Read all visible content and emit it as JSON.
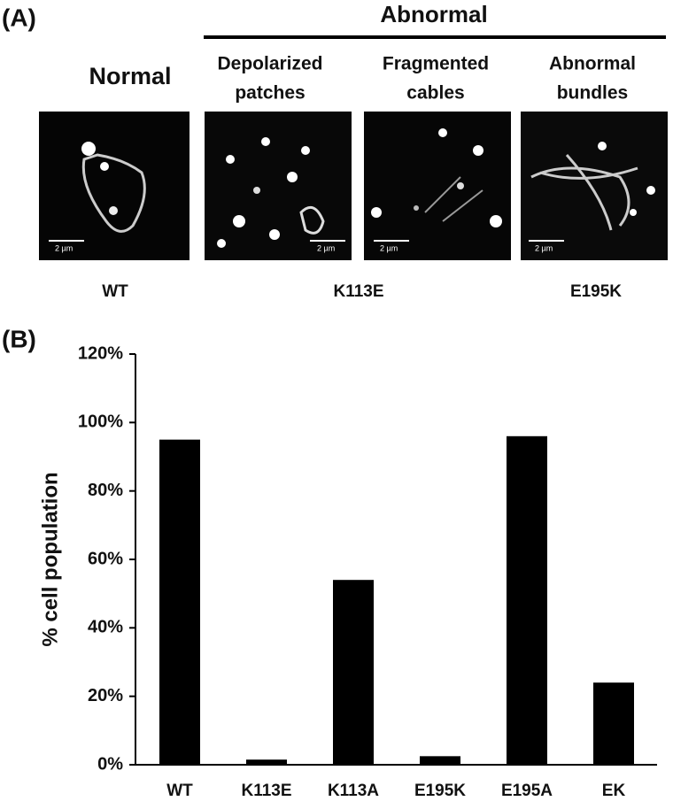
{
  "panel_a": {
    "label": "(A)",
    "group_title": "Abnormal",
    "titles": [
      [
        "Normal"
      ],
      [
        "Depolarized",
        "patches"
      ],
      [
        "Fragmented",
        "cables"
      ],
      [
        "Abnormal",
        "bundles"
      ]
    ],
    "scale_bars": [
      "2 µm",
      "2 µm",
      "2 µm",
      "2 µm"
    ],
    "strains": [
      "WT",
      "K113E",
      "E195K"
    ]
  },
  "chart_data": {
    "type": "bar",
    "panel_label": "(B)",
    "y_label": "% cell population",
    "categories": [
      "WT",
      "K113E",
      "K113A",
      "E195K",
      "E195A",
      "EK"
    ],
    "values": [
      95,
      1.5,
      54,
      2.5,
      96,
      24
    ],
    "color": "#000000",
    "ylim": [
      0,
      120
    ],
    "yticks": [
      {
        "value": 0,
        "label": "0%"
      },
      {
        "value": 20,
        "label": "20%"
      },
      {
        "value": 40,
        "label": "40%"
      },
      {
        "value": 60,
        "label": "60%"
      },
      {
        "value": 80,
        "label": "80%"
      },
      {
        "value": 100,
        "label": "100%"
      },
      {
        "value": 120,
        "label": "120%"
      }
    ]
  }
}
